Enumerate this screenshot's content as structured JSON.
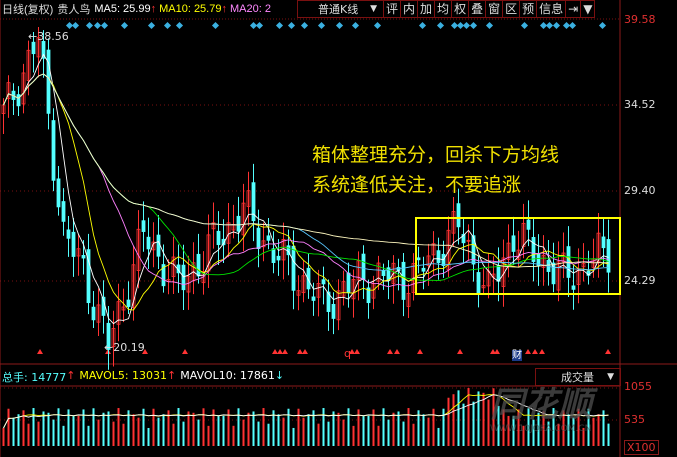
{
  "header": {
    "period": "日线(复权)",
    "stock": "贵人鸟",
    "ma5": "MA5: 25.99",
    "ma10": "MA10: 25.79",
    "ma20": "MA20: 2",
    "up": "↑"
  },
  "kline_select": {
    "value": "普通K线",
    "arrow": "▼"
  },
  "toolbar": [
    "评",
    "内",
    "加",
    "均",
    "权",
    "叠",
    "窗",
    "区",
    "预",
    "信息",
    "⇥",
    "▼"
  ],
  "price_axis": [
    "39.58",
    "34.52",
    "29.40",
    "24.29"
  ],
  "annotations": {
    "high": "38.56",
    "low": "20.19",
    "mark_q": "q",
    "mark_cai": "财"
  },
  "note": [
    "箱体整理充分，回杀下方均线",
    "系统逢低关注，不要追涨"
  ],
  "volume": {
    "total": "总手: 14777",
    "mavol5": "MAVOL5: 13031",
    "mavol10": "MAVOL10: 17861",
    "up": "↑",
    "down": "↓",
    "select": "成交量",
    "arrow": "▼",
    "axis": [
      "1055",
      "535",
      "X100"
    ]
  },
  "watermark": {
    "brand": "同花顺",
    "url": "WWW.10JQKA.COM.CN"
  },
  "colors": {
    "up": "#ff3232",
    "down": "#54ffff",
    "ma5": "#ffffff",
    "ma10": "#ffff00",
    "ma20": "#ff80ff",
    "ma60": "#00e600",
    "axis": "#8b1a1a",
    "box": "#ffff00"
  },
  "chart_data": {
    "type": "candlestick",
    "ylim": [
      20.19,
      39.58
    ],
    "key_closes": [
      [
        0,
        34
      ],
      [
        7,
        38.5
      ],
      [
        12,
        27
      ],
      [
        16,
        25
      ],
      [
        21,
        20.5
      ],
      [
        28,
        27
      ],
      [
        35,
        24
      ],
      [
        48,
        28.5
      ],
      [
        54,
        26
      ],
      [
        64,
        23
      ],
      [
        72,
        24.5
      ],
      [
        82,
        24.5
      ],
      [
        91,
        27.5
      ],
      [
        97,
        23.5
      ],
      [
        102,
        27
      ],
      [
        112,
        24.5
      ],
      [
        121,
        26
      ]
    ]
  }
}
